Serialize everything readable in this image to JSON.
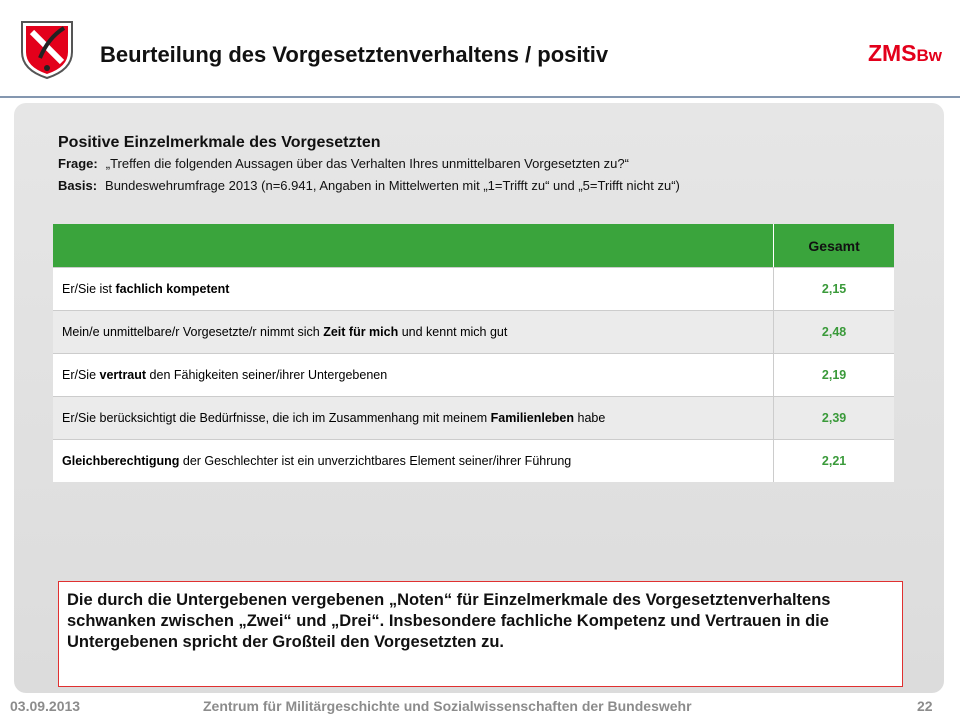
{
  "header": {
    "title": "Beurteilung des Vorgesetztenverhaltens / positiv",
    "brand": {
      "main": "ZMS",
      "sub": "Bw"
    }
  },
  "section": {
    "heading": "Positive Einzelmerkmale des Vorgesetzten",
    "question": {
      "label": "Frage:",
      "text": "„Treffen die folgenden Aussagen über das Verhalten Ihres unmittelbaren Vorgesetzten zu?“"
    },
    "basis": {
      "label": "Basis:",
      "text": "Bundeswehrumfrage 2013 (n=6.941, Angaben in Mittelwerten mit „1=Trifft zu“ und „5=Trifft nicht zu“)"
    }
  },
  "table": {
    "header": "Gesamt",
    "rows": [
      {
        "label": [
          {
            "text": "Er/Sie ist ",
            "bold": false
          },
          {
            "text": "fachlich kompetent",
            "bold": true
          }
        ],
        "value": "2,15"
      },
      {
        "label": [
          {
            "text": "Mein/e unmittelbare/r Vorgesetzte/r nimmt sich ",
            "bold": false
          },
          {
            "text": "Zeit für mich",
            "bold": true
          },
          {
            "text": " und kennt mich gut",
            "bold": false
          }
        ],
        "value": "2,48"
      },
      {
        "label": [
          {
            "text": "Er/Sie ",
            "bold": false
          },
          {
            "text": "vertraut",
            "bold": true
          },
          {
            "text": " den Fähigkeiten seiner/ihrer Untergebenen",
            "bold": false
          }
        ],
        "value": "2,19"
      },
      {
        "label": [
          {
            "text": "Er/Sie berücksichtigt die Bedürfnisse, die ich im Zusammenhang mit meinem ",
            "bold": false
          },
          {
            "text": "Familienleben",
            "bold": true
          },
          {
            "text": " habe",
            "bold": false
          }
        ],
        "value": "2,39"
      },
      {
        "label": [
          {
            "text": "Gleichberechtigung",
            "bold": true
          },
          {
            "text": " der Geschlechter ist ein unverzichtbares Element seiner/ihrer Führung",
            "bold": false
          }
        ],
        "value": "2,21"
      }
    ]
  },
  "conclusion": "Die durch die Untergebenen vergebenen „Noten“ für Einzelmerkmale des Vorgesetztenverhaltens schwanken zwischen „Zwei“ und „Drei“. Insbesondere fachliche Kompetenz und Vertrauen in die Untergebenen spricht der Großteil den Vorgesetzten zu.",
  "footer": {
    "date": "03.09.2013",
    "institution": "Zentrum für Militärgeschichte und Sozialwissenschaften der Bundeswehr",
    "page": "22"
  }
}
